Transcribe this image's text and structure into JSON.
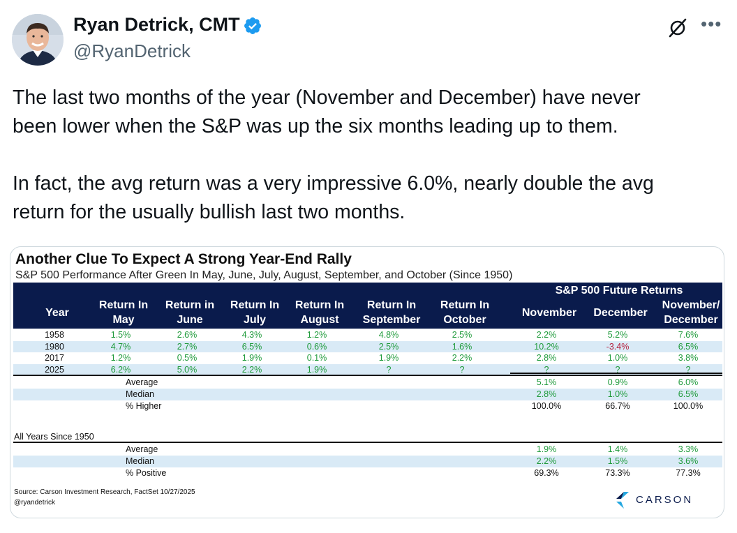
{
  "tweet": {
    "author_name": "Ryan Detrick, CMT",
    "handle": "@RyanDetrick",
    "paragraph1_line1": "The last two months of the year (November and December) have never",
    "paragraph1_line2": "been lower when the S&P was up the six months leading up to them.",
    "paragraph2_line1": "In fact, the avg return was a very impressive 6.0%, nearly double the avg",
    "paragraph2_line2": "return for the usually bullish last two months.",
    "icons": {
      "verified": "verified-badge-icon",
      "grok": "grok-icon",
      "more": "more-options-icon"
    }
  },
  "chart_data": {
    "type": "table",
    "title": "Another Clue To Expect A Strong Year-End Rally",
    "subtitle": "S&P 500 Performance After Green In May, June, July, August,  September, and October (Since 1950)",
    "group_header": "S&P 500 Future Returns",
    "columns": [
      [
        "Year"
      ],
      [
        "Return In",
        "May"
      ],
      [
        "Return in",
        "June"
      ],
      [
        "Return In",
        "July"
      ],
      [
        "Return In",
        "August"
      ],
      [
        "Return In",
        "September"
      ],
      [
        "Return In",
        "October"
      ],
      [
        "November"
      ],
      [
        "December"
      ],
      [
        "November/",
        "December"
      ]
    ],
    "rows": [
      [
        "1958",
        "1.5%",
        "2.6%",
        "4.3%",
        "1.2%",
        "4.8%",
        "2.5%",
        "2.2%",
        "5.2%",
        "7.6%"
      ],
      [
        "1980",
        "4.7%",
        "2.7%",
        "6.5%",
        "0.6%",
        "2.5%",
        "1.6%",
        "10.2%",
        "-3.4%",
        "6.5%"
      ],
      [
        "2017",
        "1.2%",
        "0.5%",
        "1.9%",
        "0.1%",
        "1.9%",
        "2.2%",
        "2.8%",
        "1.0%",
        "3.8%"
      ],
      [
        "2025",
        "6.2%",
        "5.0%",
        "2.2%",
        "1.9%",
        "?",
        "?",
        "?",
        "?",
        "?"
      ]
    ],
    "summary": [
      {
        "label": "Average",
        "values": [
          "5.1%",
          "0.9%",
          "6.0%"
        ]
      },
      {
        "label": "Median",
        "values": [
          "2.8%",
          "1.0%",
          "6.5%"
        ]
      },
      {
        "label": "% Higher",
        "values": [
          "100.0%",
          "66.7%",
          "100.0%"
        ]
      }
    ],
    "all_years_label": "All Years Since 1950",
    "all_years": [
      {
        "label": "Average",
        "values": [
          "1.9%",
          "1.4%",
          "3.3%"
        ]
      },
      {
        "label": "Median",
        "values": [
          "2.2%",
          "1.5%",
          "3.6%"
        ]
      },
      {
        "label": "% Positive",
        "values": [
          "69.3%",
          "73.3%",
          "77.3%"
        ]
      }
    ],
    "source": "Source: Carson Investment Research, FactSet 10/27/2025",
    "credit": "@ryandetrick",
    "brand": "CARSON",
    "colors": {
      "header_bg": "#0a1b4c",
      "band": "#d9eaf6",
      "positive": "#1e9a3a",
      "negative": "#b51f3d"
    }
  }
}
